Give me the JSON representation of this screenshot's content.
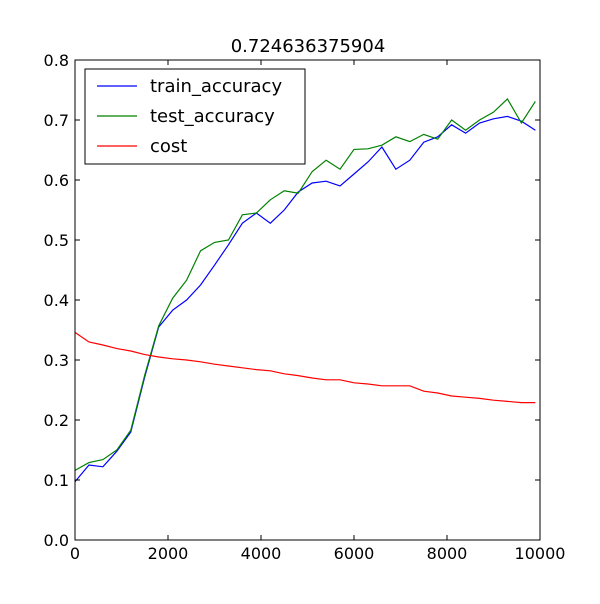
{
  "chart_data": {
    "type": "line",
    "title": "0.724636375904",
    "xlabel": "",
    "ylabel": "",
    "xlim": [
      0,
      10000
    ],
    "ylim": [
      0.0,
      0.8
    ],
    "xticks": [
      0,
      2000,
      4000,
      6000,
      8000,
      10000
    ],
    "xtick_labels": [
      "0",
      "2000",
      "4000",
      "6000",
      "8000",
      "10000"
    ],
    "yticks": [
      0.0,
      0.1,
      0.2,
      0.3,
      0.4,
      0.5,
      0.6,
      0.7,
      0.8
    ],
    "ytick_labels": [
      "0.0",
      "0.1",
      "0.2",
      "0.3",
      "0.4",
      "0.5",
      "0.6",
      "0.7",
      "0.8"
    ],
    "grid": false,
    "legend_position": "top-left",
    "x": [
      0,
      300,
      600,
      900,
      1200,
      1500,
      1800,
      2100,
      2400,
      2700,
      3000,
      3300,
      3600,
      3900,
      4200,
      4500,
      4800,
      5100,
      5400,
      5700,
      6000,
      6300,
      6600,
      6900,
      7200,
      7500,
      7800,
      8100,
      8400,
      8700,
      9000,
      9300,
      9600,
      9900
    ],
    "series": [
      {
        "name": "train_accuracy",
        "color": "#0000ff",
        "values": [
          0.097,
          0.125,
          0.122,
          0.148,
          0.18,
          0.272,
          0.355,
          0.383,
          0.4,
          0.425,
          0.458,
          0.492,
          0.528,
          0.545,
          0.528,
          0.55,
          0.58,
          0.595,
          0.598,
          0.59,
          0.61,
          0.63,
          0.655,
          0.618,
          0.633,
          0.663,
          0.672,
          0.692,
          0.678,
          0.695,
          0.702,
          0.706,
          0.698,
          0.683
        ]
      },
      {
        "name": "test_accuracy",
        "color": "#008000",
        "values": [
          0.116,
          0.129,
          0.134,
          0.15,
          0.183,
          0.275,
          0.357,
          0.403,
          0.433,
          0.482,
          0.496,
          0.5,
          0.542,
          0.545,
          0.567,
          0.582,
          0.578,
          0.614,
          0.633,
          0.618,
          0.651,
          0.652,
          0.658,
          0.672,
          0.664,
          0.676,
          0.668,
          0.7,
          0.683,
          0.7,
          0.713,
          0.735,
          0.695,
          0.731
        ]
      },
      {
        "name": "cost",
        "color": "#ff0000",
        "values": [
          0.346,
          0.33,
          0.325,
          0.319,
          0.315,
          0.309,
          0.305,
          0.302,
          0.3,
          0.297,
          0.293,
          0.29,
          0.287,
          0.284,
          0.282,
          0.277,
          0.274,
          0.27,
          0.267,
          0.267,
          0.262,
          0.26,
          0.257,
          0.257,
          0.257,
          0.248,
          0.245,
          0.24,
          0.238,
          0.236,
          0.233,
          0.231,
          0.229,
          0.229
        ]
      }
    ]
  }
}
